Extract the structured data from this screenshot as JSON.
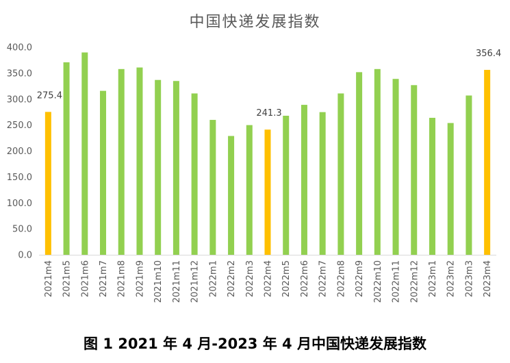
{
  "colors": {
    "normal_bar": "#92d050",
    "highlight_bar": "#ffc000",
    "axis_line": "#d9d9d9",
    "tick_text": "#595959"
  },
  "chart_data": {
    "type": "bar",
    "title": "中国快递发展指数",
    "caption": "图 1 2021 年 4 月-2023 年 4 月中国快递发展指数",
    "categories": [
      "2021m4",
      "2021m5",
      "2021m6",
      "2021m7",
      "2021m8",
      "2021m9",
      "2021m10",
      "2021m11",
      "2021m12",
      "2022m1",
      "2022m2",
      "2022m3",
      "2022m4",
      "2022m5",
      "2022m6",
      "2022m7",
      "2022m8",
      "2022m9",
      "2022m10",
      "2022m11",
      "2022m12",
      "2023m1",
      "2023m2",
      "2023m3",
      "2023m4"
    ],
    "values": [
      275.4,
      371,
      390,
      316,
      358,
      361,
      337,
      335,
      311,
      260,
      229,
      250,
      241.3,
      268,
      289,
      275,
      311,
      352,
      358,
      339,
      327,
      264,
      254,
      307,
      356.4
    ],
    "highlighted": [
      "2021m4",
      "2022m4",
      "2023m4"
    ],
    "data_labels": [
      {
        "category": "2021m4",
        "text": "275.4"
      },
      {
        "category": "2022m4",
        "text": "241.3"
      },
      {
        "category": "2023m4",
        "text": "356.4"
      }
    ],
    "ylim": [
      0,
      400
    ],
    "yticks": [
      "0.0",
      "50.0",
      "100.0",
      "150.0",
      "200.0",
      "250.0",
      "300.0",
      "350.0",
      "400.0"
    ],
    "xlabel": "",
    "ylabel": "",
    "grid": false,
    "legend": "none"
  }
}
